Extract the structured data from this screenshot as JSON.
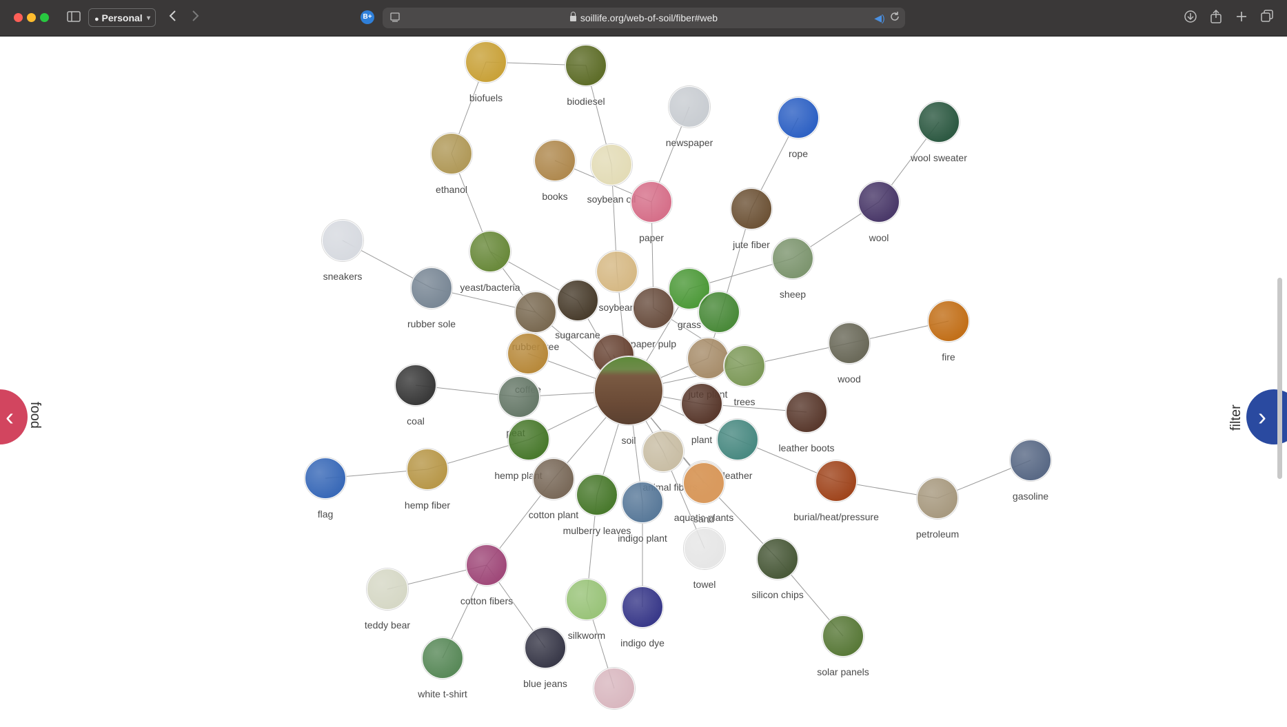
{
  "browser": {
    "profile_label": "Personal",
    "url": "soillife.org/web-of-soil/fiber#web",
    "extension_badge": "B+",
    "icons": [
      "sidebar-icon",
      "person-icon",
      "back-icon",
      "forward-icon",
      "reader-icon",
      "speaker-icon",
      "reload-icon",
      "download-icon",
      "share-icon",
      "new-tab-icon",
      "tabs-overview-icon"
    ]
  },
  "nav": {
    "left_label": "food",
    "right_label": "filter",
    "left_color": "#d2455f",
    "right_color": "#2a4aa0"
  },
  "center_label": "soil",
  "nodes": [
    {
      "id": "biofuels",
      "label": "biofuels",
      "color": "#c9a23a"
    },
    {
      "id": "biodiesel",
      "label": "biodiesel",
      "color": "#5f6e2a"
    },
    {
      "id": "newspaper",
      "label": "newspaper",
      "color": "#c9cdd2"
    },
    {
      "id": "rope",
      "label": "rope",
      "color": "#2f62c4"
    },
    {
      "id": "wool_sweater",
      "label": "wool sweater",
      "color": "#2e5a43"
    },
    {
      "id": "ethanol",
      "label": "ethanol",
      "color": "#b19a5a"
    },
    {
      "id": "books",
      "label": "books",
      "color": "#b08a50"
    },
    {
      "id": "soybean_oil",
      "label": "soybean oil",
      "color": "#e3dcb7"
    },
    {
      "id": "paper",
      "label": "paper",
      "color": "#d6708a"
    },
    {
      "id": "jute_fiber",
      "label": "jute fiber",
      "color": "#6e5438"
    },
    {
      "id": "wool",
      "label": "wool",
      "color": "#4b3a6a"
    },
    {
      "id": "sneakers",
      "label": "sneakers",
      "color": "#d7dae0"
    },
    {
      "id": "yeast_bacteria",
      "label": "yeast/bacteria",
      "color": "#6a8a3c"
    },
    {
      "id": "sheep",
      "label": "sheep",
      "color": "#7e9670"
    },
    {
      "id": "rubber_sole",
      "label": "rubber sole",
      "color": "#7a8896"
    },
    {
      "id": "soybean",
      "label": "soybean",
      "color": "#d6b985"
    },
    {
      "id": "grass",
      "label": "grass",
      "color": "#4e9a3a"
    },
    {
      "id": "paper_pulp",
      "label": "paper pulp",
      "color": "#6b5041"
    },
    {
      "id": "sugarcane",
      "label": "sugarcane",
      "color": "#4a3e2e"
    },
    {
      "id": "rubber_tree",
      "label": "rubber tree",
      "color": "#7a6a52"
    },
    {
      "id": "bamboo",
      "label": "",
      "color": "#4a8a3a"
    },
    {
      "id": "fire",
      "label": "fire",
      "color": "#c2701a"
    },
    {
      "id": "coffee",
      "label": "coffee",
      "color": "#b88a3c"
    },
    {
      "id": "wood",
      "label": "wood",
      "color": "#6b6a5a"
    },
    {
      "id": "jute_plant",
      "label": "jute plant",
      "color": "#a88e6c"
    },
    {
      "id": "trees",
      "label": "trees",
      "color": "#7e9a5a"
    },
    {
      "id": "cocoa",
      "label": "",
      "color": "#6a4636"
    },
    {
      "id": "coal",
      "label": "coal",
      "color": "#3a3a3a"
    },
    {
      "id": "peat",
      "label": "peat",
      "color": "#687a6a"
    },
    {
      "id": "plant",
      "label": "plant",
      "color": "#5a3a2e"
    },
    {
      "id": "leather_boots",
      "label": "leather boots",
      "color": "#5a3a2e"
    },
    {
      "id": "leather",
      "label": "leather",
      "color": "#4a8a82"
    },
    {
      "id": "hemp_plant",
      "label": "hemp plant",
      "color": "#4a7a2e"
    },
    {
      "id": "animal_fibers",
      "label": "animal fibers",
      "color": "#c9bea5"
    },
    {
      "id": "aquatic_plants",
      "label": "aquatic plants",
      "color": "#d9a064"
    },
    {
      "id": "gasoline",
      "label": "gasoline",
      "color": "#5a6a86"
    },
    {
      "id": "flag",
      "label": "flag",
      "color": "#3a6ab8"
    },
    {
      "id": "hemp_fiber",
      "label": "hemp fiber",
      "color": "#b8984a"
    },
    {
      "id": "cotton_plant",
      "label": "cotton plant",
      "color": "#7a6a5a"
    },
    {
      "id": "burial",
      "label": "burial/heat/pressure",
      "color": "#a0461e"
    },
    {
      "id": "mulberry_leaves",
      "label": "mulberry leaves",
      "color": "#4a7a2e"
    },
    {
      "id": "indigo_plant",
      "label": "indigo plant",
      "color": "#5a7a9a"
    },
    {
      "id": "sand",
      "label": "sand",
      "color": "#d99a5e"
    },
    {
      "id": "petroleum",
      "label": "petroleum",
      "color": "#a89a80"
    },
    {
      "id": "towel",
      "label": "towel",
      "color": "#e6e6e6"
    },
    {
      "id": "silicon_chips",
      "label": "silicon chips",
      "color": "#4a5a3a"
    },
    {
      "id": "cotton_fibers",
      "label": "cotton fibers",
      "color": "#a04a7a"
    },
    {
      "id": "teddy_bear",
      "label": "teddy bear",
      "color": "#d6d8c6"
    },
    {
      "id": "silkworm",
      "label": "silkworm",
      "color": "#9ac47a"
    },
    {
      "id": "indigo_dye",
      "label": "indigo dye",
      "color": "#3a3a8a"
    },
    {
      "id": "solar_panels",
      "label": "solar panels",
      "color": "#5a7a3a"
    },
    {
      "id": "white_tshirt",
      "label": "white t-shirt",
      "color": "#5a8a5a"
    },
    {
      "id": "blue_jeans",
      "label": "blue jeans",
      "color": "#3a3a4a"
    },
    {
      "id": "silk",
      "label": "",
      "color": "#d9b8c0"
    },
    {
      "id": "soil",
      "label": "soil",
      "color": "#6a5240"
    }
  ],
  "edges": [
    [
      "biofuels",
      "biodiesel"
    ],
    [
      "biofuels",
      "ethanol"
    ],
    [
      "biodiesel",
      "soybean_oil"
    ],
    [
      "ethanol",
      "yeast_bacteria"
    ],
    [
      "books",
      "paper"
    ],
    [
      "newspaper",
      "paper"
    ],
    [
      "soybean_oil",
      "soybean"
    ],
    [
      "paper",
      "paper_pulp"
    ],
    [
      "rope",
      "jute_fiber"
    ],
    [
      "jute_fiber",
      "jute_plant"
    ],
    [
      "wool_sweater",
      "wool"
    ],
    [
      "wool",
      "sheep"
    ],
    [
      "sheep",
      "grass"
    ],
    [
      "sneakers",
      "rubber_sole"
    ],
    [
      "rubber_sole",
      "rubber_tree"
    ],
    [
      "yeast_bacteria",
      "sugarcane"
    ],
    [
      "yeast_bacteria",
      "rubber_tree"
    ],
    [
      "soybean",
      "soil"
    ],
    [
      "grass",
      "soil"
    ],
    [
      "paper_pulp",
      "trees"
    ],
    [
      "sugarcane",
      "soil"
    ],
    [
      "rubber_tree",
      "soil"
    ],
    [
      "coffee",
      "soil"
    ],
    [
      "cocoa",
      "soil"
    ],
    [
      "fire",
      "wood"
    ],
    [
      "wood",
      "trees"
    ],
    [
      "trees",
      "soil"
    ],
    [
      "jute_plant",
      "soil"
    ],
    [
      "coal",
      "peat"
    ],
    [
      "peat",
      "soil"
    ],
    [
      "plant",
      "soil"
    ],
    [
      "plant",
      "leather_boots"
    ],
    [
      "leather",
      "soil"
    ],
    [
      "leather",
      "burial"
    ],
    [
      "hemp_plant",
      "soil"
    ],
    [
      "hemp_plant",
      "hemp_fiber"
    ],
    [
      "hemp_fiber",
      "flag"
    ],
    [
      "cotton_plant",
      "soil"
    ],
    [
      "cotton_plant",
      "cotton_fibers"
    ],
    [
      "animal_fibers",
      "soil"
    ],
    [
      "animal_fibers",
      "towel"
    ],
    [
      "aquatic_plants",
      "soil"
    ],
    [
      "aquatic_plants",
      "silicon_chips"
    ],
    [
      "burial",
      "petroleum"
    ],
    [
      "petroleum",
      "gasoline"
    ],
    [
      "mulberry_leaves",
      "soil"
    ],
    [
      "mulberry_leaves",
      "silkworm"
    ],
    [
      "indigo_plant",
      "soil"
    ],
    [
      "indigo_plant",
      "indigo_dye"
    ],
    [
      "silicon_chips",
      "solar_panels"
    ],
    [
      "cotton_fibers",
      "teddy_bear"
    ],
    [
      "cotton_fibers",
      "white_tshirt"
    ],
    [
      "cotton_fibers",
      "blue_jeans"
    ],
    [
      "silkworm",
      "silk"
    ],
    [
      "sand",
      "soil"
    ]
  ]
}
